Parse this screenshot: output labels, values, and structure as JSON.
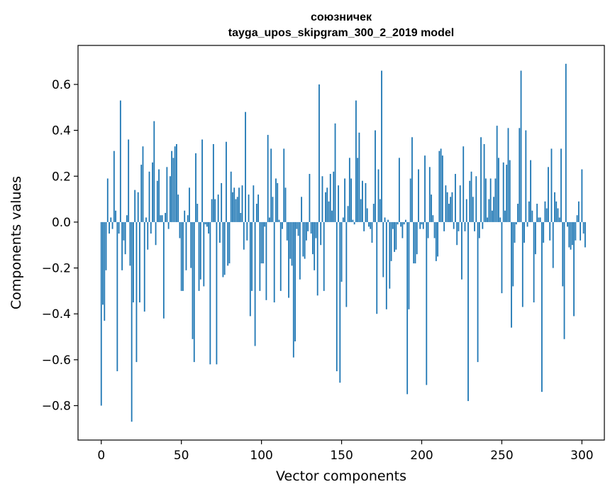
{
  "chart_data": {
    "type": "bar",
    "title": "союзничек",
    "subtitle": "tayga_upos_skipgram_300_2_2019 model",
    "xlabel": "Vector components",
    "ylabel": "Components values",
    "xlim": [
      -14.5,
      314
    ],
    "ylim": [
      -0.95,
      0.77
    ],
    "xticks": [
      0,
      50,
      100,
      150,
      200,
      250,
      300
    ],
    "xtick_labels": [
      "0",
      "50",
      "100",
      "150",
      "200",
      "250",
      "300"
    ],
    "yticks": [
      -0.8,
      -0.6,
      -0.4,
      -0.2,
      0.0,
      0.2,
      0.4,
      0.6
    ],
    "ytick_labels": [
      "−0.8",
      "−0.6",
      "−0.4",
      "−0.2",
      "0.0",
      "0.2",
      "0.4",
      "0.6"
    ],
    "bar_color": "#1f77b4",
    "values": [
      -0.8,
      -0.36,
      -0.43,
      -0.21,
      0.19,
      -0.05,
      0.02,
      -0.03,
      0.31,
      0.05,
      -0.65,
      -0.05,
      0.53,
      -0.21,
      -0.08,
      -0.14,
      0.03,
      0.36,
      -0.19,
      -0.87,
      -0.35,
      0.14,
      -0.61,
      0.13,
      -0.35,
      0.25,
      0.33,
      -0.39,
      0.02,
      -0.12,
      0.22,
      -0.05,
      0.26,
      0.44,
      -0.1,
      0.18,
      0.23,
      0.03,
      0.03,
      -0.42,
      0.04,
      0.24,
      -0.03,
      0.2,
      0.31,
      0.28,
      0.33,
      0.34,
      0.12,
      -0.07,
      -0.3,
      -0.3,
      0.05,
      -0.21,
      0.03,
      0.15,
      -0.2,
      -0.51,
      -0.61,
      0.3,
      0.08,
      -0.3,
      -0.25,
      0.36,
      -0.28,
      -0.01,
      -0.02,
      -0.05,
      -0.62,
      0.1,
      0.34,
      0.1,
      -0.62,
      0.12,
      -0.09,
      0.17,
      -0.24,
      -0.23,
      0.35,
      -0.19,
      -0.18,
      0.22,
      0.13,
      0.15,
      0.1,
      0.11,
      0.15,
      0.04,
      0.16,
      -0.12,
      0.48,
      -0.08,
      0.12,
      -0.41,
      -0.3,
      0.16,
      -0.54,
      0.08,
      0.12,
      -0.3,
      -0.18,
      -0.18,
      -0.02,
      -0.34,
      0.38,
      0.02,
      0.32,
      0.11,
      -0.35,
      0.19,
      0.17,
      0.01,
      -0.3,
      -0.03,
      0.32,
      0.15,
      -0.08,
      -0.33,
      -0.16,
      -0.19,
      -0.59,
      -0.52,
      -0.03,
      -0.06,
      -0.25,
      0.11,
      -0.15,
      -0.16,
      -0.08,
      -0.04,
      0.21,
      -0.05,
      -0.14,
      -0.21,
      -0.07,
      -0.32,
      0.6,
      -0.1,
      0.2,
      -0.3,
      0.13,
      0.15,
      0.09,
      0.21,
      0.05,
      0.22,
      0.43,
      -0.65,
      0.16,
      -0.7,
      -0.26,
      0.02,
      0.19,
      -0.37,
      0.07,
      0.28,
      0.19,
      0.01,
      -0.01,
      0.53,
      0.28,
      0.39,
      0.1,
      0.18,
      -0.04,
      0.17,
      0.06,
      -0.02,
      -0.03,
      -0.09,
      0.08,
      0.4,
      -0.4,
      0.23,
      0.1,
      0.66,
      -0.24,
      0.02,
      -0.38,
      0.01,
      -0.29,
      -0.17,
      -0.03,
      -0.13,
      -0.12,
      -0.01,
      0.28,
      -0.02,
      -0.07,
      -0.01,
      0.01,
      -0.75,
      -0.38,
      0.19,
      0.37,
      -0.18,
      -0.18,
      -0.14,
      0.23,
      -0.03,
      -0.01,
      -0.03,
      0.29,
      -0.71,
      -0.07,
      0.24,
      0.12,
      0.03,
      -0.07,
      -0.17,
      -0.15,
      0.31,
      0.32,
      0.29,
      -0.04,
      0.16,
      0.13,
      0.08,
      0.11,
      0.13,
      -0.03,
      0.21,
      -0.1,
      -0.04,
      0.16,
      -0.25,
      0.33,
      -0.04,
      0.1,
      -0.78,
      0.18,
      0.22,
      0.11,
      -0.04,
      0.2,
      -0.61,
      -0.07,
      0.37,
      -0.03,
      0.34,
      0.19,
      0.02,
      0.1,
      0.19,
      0.05,
      0.11,
      0.19,
      0.42,
      0.28,
      0.02,
      -0.31,
      0.26,
      0.05,
      0.25,
      0.41,
      0.27,
      -0.46,
      -0.28,
      -0.09,
      -0.01,
      0.08,
      0.41,
      0.66,
      -0.37,
      -0.09,
      0.4,
      -0.02,
      0.09,
      0.27,
      0.05,
      -0.35,
      -0.14,
      0.08,
      0.02,
      0.02,
      -0.74,
      -0.09,
      0.09,
      0.06,
      0.24,
      -0.08,
      0.32,
      -0.2,
      0.13,
      0.09,
      0.06,
      0.02,
      0.32,
      -0.28,
      -0.51,
      0.69,
      -0.02,
      -0.11,
      -0.12,
      -0.1,
      -0.41,
      -0.08,
      0.03,
      0.09,
      -0.08,
      0.23,
      -0.05,
      -0.11
    ]
  }
}
